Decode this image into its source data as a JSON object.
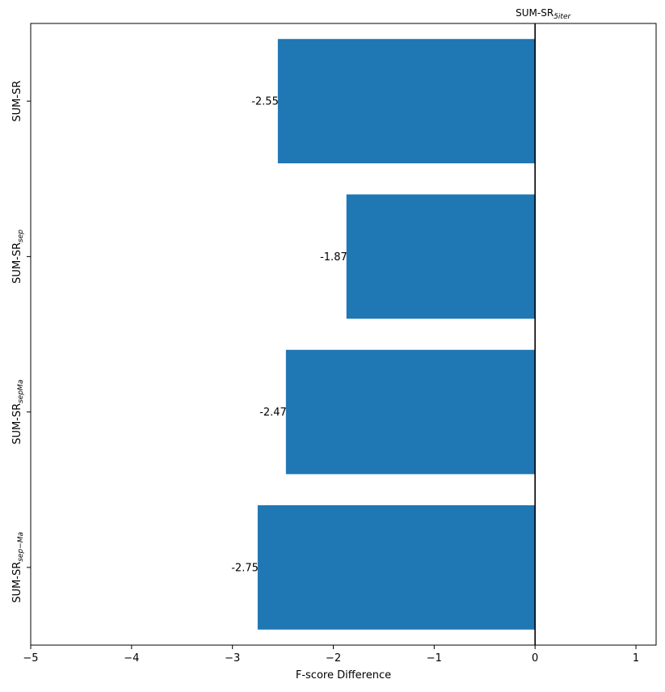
{
  "chart_data": {
    "type": "bar",
    "orientation": "horizontal",
    "categories": [
      {
        "base": "SUM-SR",
        "sub": ""
      },
      {
        "base": "SUM-SR",
        "sub": "sep"
      },
      {
        "base": "SUM-SR",
        "sub": "sepMa"
      },
      {
        "base": "SUM-SR",
        "sub": "sep−Ma"
      }
    ],
    "values": [
      -2.55,
      -1.87,
      -2.47,
      -2.75
    ],
    "value_labels": [
      "-2.55",
      "-1.87",
      "-2.47",
      "-2.75"
    ],
    "xlabel": "F-score Difference",
    "xlim": [
      -5,
      1.2
    ],
    "xticks": [
      -5,
      -4,
      -3,
      -2,
      -1,
      0,
      1
    ],
    "xtick_labels": [
      "−5",
      "−4",
      "−3",
      "−2",
      "−1",
      "0",
      "1"
    ],
    "reference_line": {
      "x": 0,
      "label_base": "SUM-SR",
      "label_sub": "5iter"
    },
    "grid": false,
    "bar_color": "#1f77b4"
  }
}
